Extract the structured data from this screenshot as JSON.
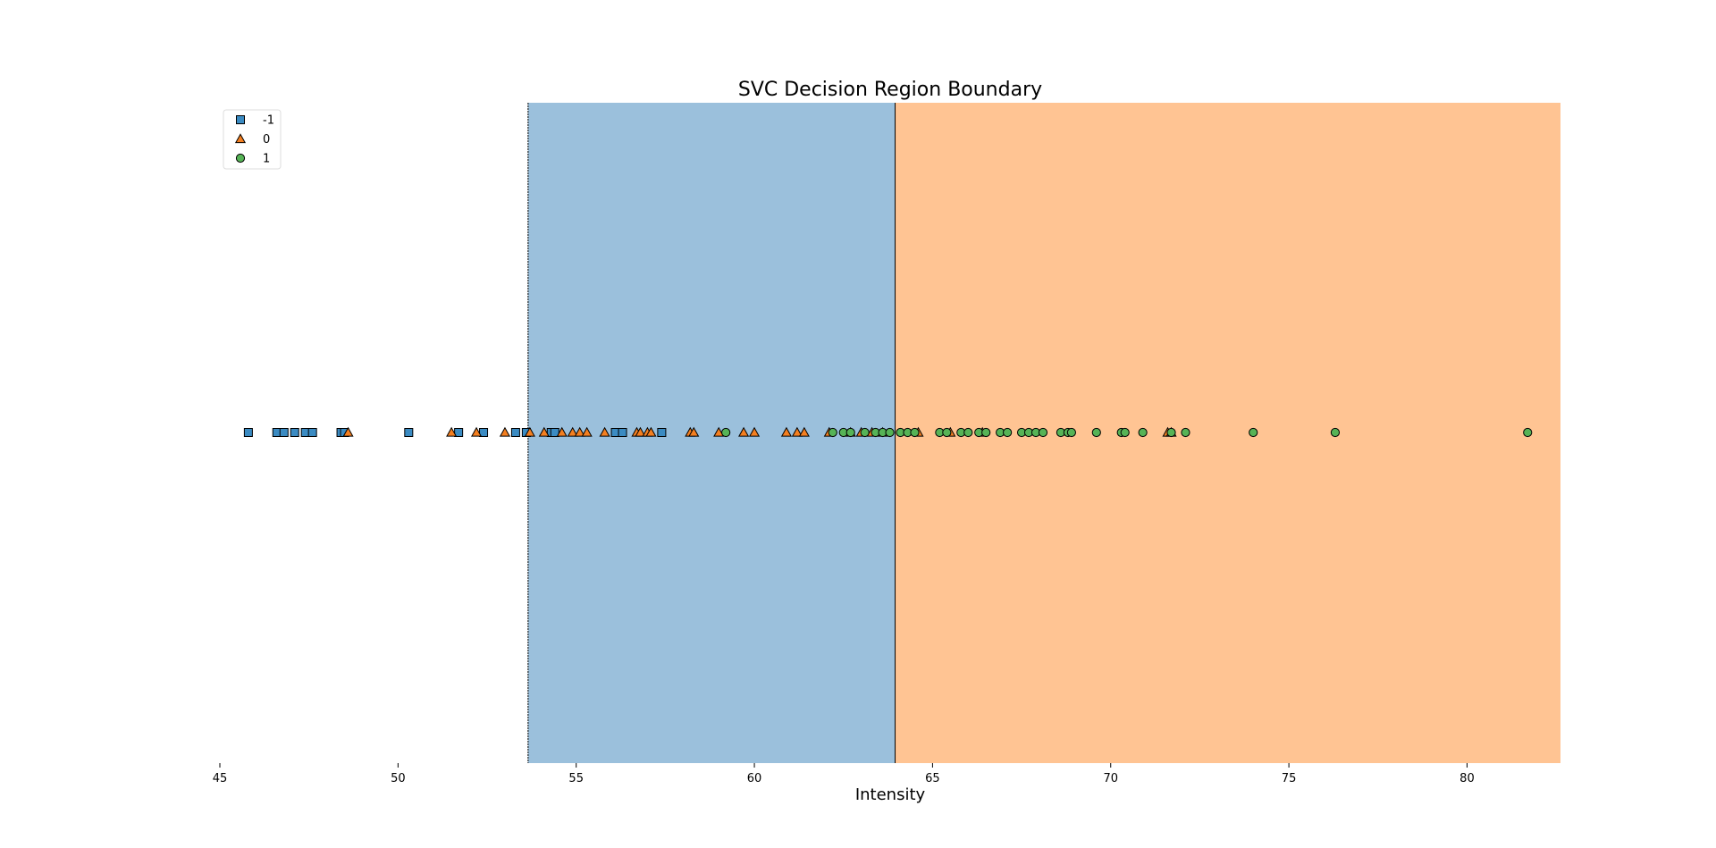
{
  "chart_data": {
    "type": "scatter",
    "title": "SVC Decision Region Boundary",
    "xlabel": "Intensity",
    "ylabel": "",
    "xlim": [
      45,
      82.7
    ],
    "xticks": [
      45,
      50,
      55,
      60,
      65,
      70,
      75,
      80
    ],
    "grid": false,
    "legend_position": "top-left",
    "decision_regions": [
      {
        "class": "-1",
        "x_start": 45,
        "x_end": 53.65,
        "color": "#ffffff"
      },
      {
        "class": "-1",
        "x_start": 53.65,
        "x_end": 63.95,
        "color": "#9bc0dc"
      },
      {
        "class": "1",
        "x_start": 63.95,
        "x_end": 82.7,
        "color": "#ffc493"
      }
    ],
    "boundaries": [
      53.65,
      63.95
    ],
    "series": [
      {
        "name": "-1",
        "marker": "square",
        "color": "#3b8bc2",
        "x": [
          45.8,
          46.6,
          46.8,
          47.1,
          47.4,
          47.6,
          48.4,
          48.5,
          50.3,
          51.7,
          52.4,
          53.3,
          53.6,
          54.3,
          54.4,
          56.1,
          56.3,
          57.4
        ]
      },
      {
        "name": "0",
        "marker": "triangle",
        "color": "#f47f20",
        "x": [
          48.6,
          51.5,
          52.2,
          53.0,
          53.7,
          54.1,
          54.6,
          54.9,
          55.1,
          55.3,
          55.8,
          56.7,
          56.8,
          57.0,
          57.1,
          58.2,
          58.3,
          59.0,
          59.7,
          60.0,
          60.9,
          61.2,
          61.4,
          62.1,
          62.7,
          63.0,
          63.3,
          63.6,
          64.6,
          65.5,
          66.4,
          71.6,
          71.7
        ]
      },
      {
        "name": "1",
        "marker": "circle",
        "color": "#56b356",
        "x": [
          59.2,
          62.2,
          62.5,
          62.7,
          63.1,
          63.4,
          63.6,
          63.8,
          64.1,
          64.3,
          64.5,
          65.2,
          65.4,
          65.8,
          66.0,
          66.3,
          66.5,
          66.9,
          67.1,
          67.5,
          67.7,
          67.9,
          68.1,
          68.6,
          68.8,
          68.9,
          69.6,
          70.3,
          70.4,
          70.9,
          71.7,
          72.1,
          74.0,
          76.3,
          81.7
        ]
      }
    ]
  }
}
